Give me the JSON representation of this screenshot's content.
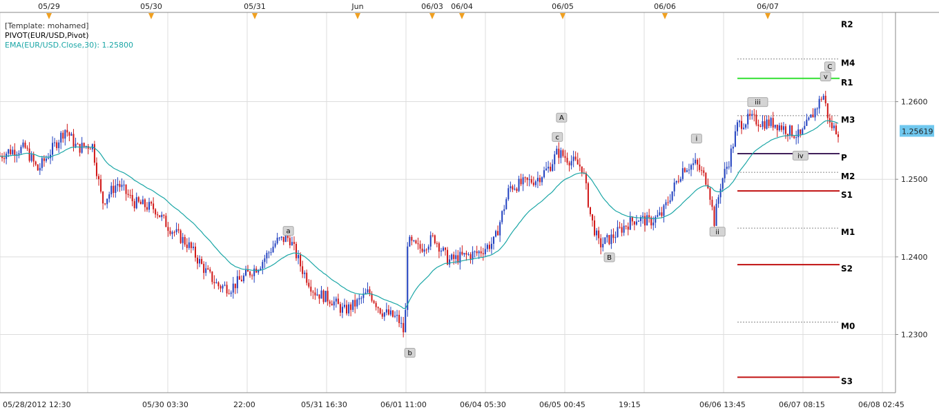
{
  "header": {
    "template": "[Template: mohamed]",
    "pivot_indicator": "PIVOT(EUR/USD,Pivot)",
    "ema_indicator": "EMA(EUR/USD.Close,30): 1.25800"
  },
  "top_dates": [
    "05/29",
    "05/30",
    "05/31",
    "Jun",
    "06/03",
    "06/04",
    "06/05",
    "06/06",
    "06/07"
  ],
  "colors": {
    "up": "#1f3fbf",
    "down": "#d01515",
    "ema": "#1aa6a6",
    "grid": "#dcdcdc",
    "axis": "#888888",
    "marker": "#f0a020",
    "price_tag": "#70c8ef",
    "R1": "#30e030",
    "P": "#40205a",
    "S": "#c01010",
    "mid": "#888888"
  },
  "price_tag": "1.25619",
  "chart_data": {
    "type": "candlestick",
    "symbol": "EUR/USD",
    "y_ticks": [
      "1.2600",
      "1.2500",
      "1.2400",
      "1.2300"
    ],
    "x_labels": [
      "05/28/2012 12:30",
      "05/30 03:30",
      "22:00",
      "05/31 16:30",
      "06/01 11:00",
      "06/04 05:30",
      "06/05 00:45",
      "19:15",
      "06/06 13:45",
      "06/07 08:15",
      "06/08 02:45"
    ],
    "ylim": [
      1.2225,
      1.2715
    ],
    "ema_period": 30,
    "last_price": 1.25619,
    "ema_last": 1.258,
    "pivot_levels": [
      {
        "name": "R2",
        "value": 1.2705,
        "style": "none"
      },
      {
        "name": "M4",
        "value": 1.2655,
        "style": "dotted"
      },
      {
        "name": "R1",
        "value": 1.263,
        "style": "R1"
      },
      {
        "name": "M3",
        "value": 1.2582,
        "style": "dotted"
      },
      {
        "name": "P",
        "value": 1.2533,
        "style": "P"
      },
      {
        "name": "M2",
        "value": 1.2509,
        "style": "dotted"
      },
      {
        "name": "S1",
        "value": 1.2485,
        "style": "S"
      },
      {
        "name": "M1",
        "value": 1.2437,
        "style": "dotted"
      },
      {
        "name": "S2",
        "value": 1.239,
        "style": "S"
      },
      {
        "name": "M0",
        "value": 1.2316,
        "style": "dotted"
      },
      {
        "name": "S3",
        "value": 1.2245,
        "style": "S"
      }
    ],
    "wave_labels": [
      {
        "text": "a",
        "t": 0.344,
        "price": 1.2433
      },
      {
        "text": "b",
        "t": 0.489,
        "price": 1.2276
      },
      {
        "text": "A",
        "t": 0.67,
        "price": 1.2579
      },
      {
        "text": "c",
        "t": 0.665,
        "price": 1.2554
      },
      {
        "text": "B",
        "t": 0.727,
        "price": 1.2399
      },
      {
        "text": "i",
        "t": 0.831,
        "price": 1.2552
      },
      {
        "text": "ii",
        "t": 0.856,
        "price": 1.2432
      },
      {
        "text": "iii",
        "t": 0.904,
        "price": 1.2599
      },
      {
        "text": "iv",
        "t": 0.955,
        "price": 1.253
      },
      {
        "text": "v",
        "t": 0.985,
        "price": 1.2632
      },
      {
        "text": "C",
        "t": 0.99,
        "price": 1.2645
      }
    ],
    "price_path": [
      [
        0.0,
        1.253
      ],
      [
        0.01,
        1.2536
      ],
      [
        0.03,
        1.254
      ],
      [
        0.045,
        1.2512
      ],
      [
        0.06,
        1.2535
      ],
      [
        0.078,
        1.2565
      ],
      [
        0.092,
        1.254
      ],
      [
        0.11,
        1.2545
      ],
      [
        0.122,
        1.247
      ],
      [
        0.14,
        1.2495
      ],
      [
        0.16,
        1.247
      ],
      [
        0.185,
        1.2462
      ],
      [
        0.2,
        1.244
      ],
      [
        0.225,
        1.2415
      ],
      [
        0.245,
        1.2382
      ],
      [
        0.26,
        1.2363
      ],
      [
        0.275,
        1.236
      ],
      [
        0.292,
        1.2375
      ],
      [
        0.31,
        1.239
      ],
      [
        0.33,
        1.242
      ],
      [
        0.345,
        1.2425
      ],
      [
        0.36,
        1.2385
      ],
      [
        0.375,
        1.2355
      ],
      [
        0.395,
        1.2345
      ],
      [
        0.41,
        1.233
      ],
      [
        0.425,
        1.234
      ],
      [
        0.44,
        1.2355
      ],
      [
        0.455,
        1.233
      ],
      [
        0.475,
        1.232
      ],
      [
        0.483,
        1.23
      ],
      [
        0.486,
        1.242
      ],
      [
        0.5,
        1.241
      ],
      [
        0.518,
        1.2425
      ],
      [
        0.535,
        1.2395
      ],
      [
        0.55,
        1.24
      ],
      [
        0.57,
        1.2405
      ],
      [
        0.59,
        1.242
      ],
      [
        0.608,
        1.249
      ],
      [
        0.625,
        1.2495
      ],
      [
        0.64,
        1.25
      ],
      [
        0.655,
        1.2515
      ],
      [
        0.665,
        1.2535
      ],
      [
        0.68,
        1.2525
      ],
      [
        0.695,
        1.2515
      ],
      [
        0.705,
        1.245
      ],
      [
        0.715,
        1.2415
      ],
      [
        0.73,
        1.2425
      ],
      [
        0.745,
        1.244
      ],
      [
        0.76,
        1.245
      ],
      [
        0.775,
        1.2445
      ],
      [
        0.79,
        1.2455
      ],
      [
        0.8,
        1.248
      ],
      [
        0.815,
        1.2515
      ],
      [
        0.83,
        1.252
      ],
      [
        0.845,
        1.2495
      ],
      [
        0.852,
        1.2445
      ],
      [
        0.86,
        1.2495
      ],
      [
        0.87,
        1.2525
      ],
      [
        0.88,
        1.257
      ],
      [
        0.895,
        1.2578
      ],
      [
        0.91,
        1.2573
      ],
      [
        0.925,
        1.2572
      ],
      [
        0.94,
        1.2563
      ],
      [
        0.955,
        1.2555
      ],
      [
        0.968,
        1.258
      ],
      [
        0.982,
        1.261
      ],
      [
        0.99,
        1.257
      ],
      [
        1.0,
        1.2562
      ]
    ]
  }
}
